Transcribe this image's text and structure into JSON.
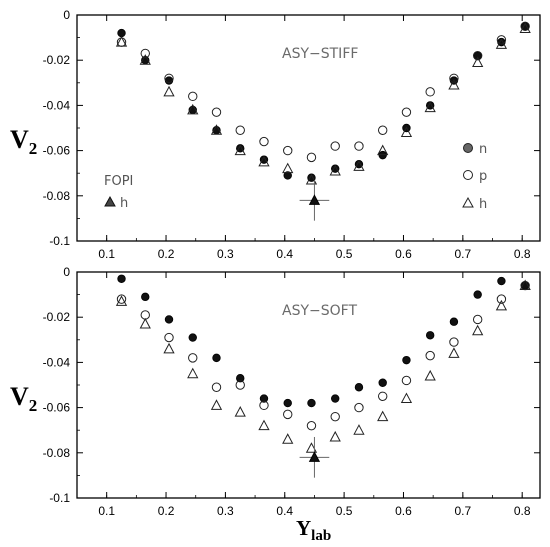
{
  "chart_data": [
    {
      "type": "scatter",
      "title": "",
      "annotation": "ASY−STIFF",
      "xlabel": "",
      "ylabel_main": "V",
      "ylabel_sub": "2",
      "xlim": [
        0.05,
        0.83
      ],
      "ylim": [
        -0.1,
        0
      ],
      "xticks": [
        "0.1",
        "0.2",
        "0.3",
        "0.4",
        "0.5",
        "0.6",
        "0.7",
        "0.8"
      ],
      "yticks": [
        "0",
        "-0.02",
        "-0.04",
        "-0.06",
        "-0.08",
        "-0.1"
      ],
      "legend": {
        "position": "right",
        "entries": [
          {
            "marker": "filled-circle",
            "label": "n"
          },
          {
            "marker": "open-circle",
            "label": "p"
          },
          {
            "marker": "open-triangle",
            "label": "h"
          }
        ]
      },
      "fopi_legend": {
        "title": "FOPI",
        "marker": "filled-triangle",
        "label": "h"
      },
      "series": [
        {
          "name": "n",
          "marker": "filled-circle",
          "x": [
            0.125,
            0.165,
            0.205,
            0.245,
            0.285,
            0.325,
            0.365,
            0.405,
            0.445,
            0.485,
            0.525,
            0.565,
            0.605,
            0.645,
            0.685,
            0.725,
            0.765,
            0.805
          ],
          "y": [
            -0.008,
            -0.02,
            -0.029,
            -0.042,
            -0.051,
            -0.059,
            -0.064,
            -0.071,
            -0.072,
            -0.068,
            -0.066,
            -0.062,
            -0.05,
            -0.04,
            -0.029,
            -0.018,
            -0.012,
            -0.005
          ]
        },
        {
          "name": "p",
          "marker": "open-circle",
          "x": [
            0.125,
            0.165,
            0.205,
            0.245,
            0.285,
            0.325,
            0.365,
            0.405,
            0.445,
            0.485,
            0.525,
            0.565,
            0.605,
            0.645,
            0.685,
            0.725,
            0.765,
            0.805
          ],
          "y": [
            -0.012,
            -0.017,
            -0.028,
            -0.036,
            -0.043,
            -0.051,
            -0.056,
            -0.06,
            -0.063,
            -0.058,
            -0.058,
            -0.051,
            -0.043,
            -0.034,
            -0.028,
            -0.018,
            -0.011,
            -0.005
          ]
        },
        {
          "name": "h",
          "marker": "open-triangle",
          "x": [
            0.125,
            0.165,
            0.205,
            0.245,
            0.285,
            0.325,
            0.365,
            0.405,
            0.445,
            0.485,
            0.525,
            0.565,
            0.605,
            0.645,
            0.685,
            0.725,
            0.765,
            0.805
          ],
          "y": [
            -0.012,
            -0.02,
            -0.034,
            -0.042,
            -0.051,
            -0.06,
            -0.065,
            -0.068,
            -0.073,
            -0.069,
            -0.067,
            -0.06,
            -0.052,
            -0.041,
            -0.031,
            -0.021,
            -0.013,
            -0.006
          ]
        },
        {
          "name": "FOPI h",
          "marker": "filled-triangle",
          "x": [
            0.45
          ],
          "y": [
            -0.082
          ],
          "xerr": [
            0.025
          ],
          "yerr": [
            0.009
          ]
        }
      ]
    },
    {
      "type": "scatter",
      "title": "",
      "annotation": "ASY−SOFT",
      "xlabel_main": "Y",
      "xlabel_sub": "lab",
      "ylabel_main": "V",
      "ylabel_sub": "2",
      "xlim": [
        0.05,
        0.83
      ],
      "ylim": [
        -0.1,
        0
      ],
      "xticks": [
        "0.1",
        "0.2",
        "0.3",
        "0.4",
        "0.5",
        "0.6",
        "0.7",
        "0.8"
      ],
      "yticks": [
        "0",
        "-0.02",
        "-0.04",
        "-0.06",
        "-0.08",
        "-0.1"
      ],
      "series": [
        {
          "name": "n",
          "marker": "filled-circle",
          "x": [
            0.125,
            0.165,
            0.205,
            0.245,
            0.285,
            0.325,
            0.365,
            0.405,
            0.445,
            0.485,
            0.525,
            0.565,
            0.605,
            0.645,
            0.685,
            0.725,
            0.765,
            0.805
          ],
          "y": [
            -0.003,
            -0.011,
            -0.021,
            -0.029,
            -0.038,
            -0.047,
            -0.056,
            -0.058,
            -0.058,
            -0.056,
            -0.051,
            -0.049,
            -0.039,
            -0.028,
            -0.022,
            -0.01,
            -0.004,
            -0.006
          ]
        },
        {
          "name": "p",
          "marker": "open-circle",
          "x": [
            0.125,
            0.165,
            0.205,
            0.245,
            0.285,
            0.325,
            0.365,
            0.405,
            0.445,
            0.485,
            0.525,
            0.565,
            0.605,
            0.645,
            0.685,
            0.725,
            0.765,
            0.805
          ],
          "y": [
            -0.012,
            -0.019,
            -0.029,
            -0.038,
            -0.051,
            -0.05,
            -0.059,
            -0.063,
            -0.068,
            -0.064,
            -0.06,
            -0.055,
            -0.048,
            -0.037,
            -0.031,
            -0.021,
            -0.012,
            -0.006
          ]
        },
        {
          "name": "h",
          "marker": "open-triangle",
          "x": [
            0.125,
            0.165,
            0.205,
            0.245,
            0.285,
            0.325,
            0.365,
            0.405,
            0.445,
            0.485,
            0.525,
            0.565,
            0.605,
            0.645,
            0.685,
            0.725,
            0.765,
            0.805
          ],
          "y": [
            -0.013,
            -0.023,
            -0.034,
            -0.045,
            -0.059,
            -0.062,
            -0.068,
            -0.074,
            -0.078,
            -0.073,
            -0.07,
            -0.064,
            -0.056,
            -0.046,
            -0.036,
            -0.026,
            -0.015,
            -0.006
          ]
        },
        {
          "name": "FOPI h",
          "marker": "filled-triangle",
          "x": [
            0.45
          ],
          "y": [
            -0.082
          ],
          "xerr": [
            0.025
          ],
          "yerr": [
            0.009
          ]
        }
      ]
    }
  ]
}
